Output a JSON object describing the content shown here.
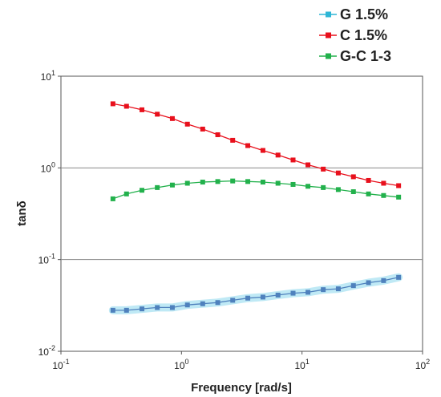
{
  "chart_data": {
    "type": "line",
    "title": "",
    "xlabel": "Frequency [rad/s]",
    "ylabel": "tanδ",
    "x_scale": "log",
    "y_scale": "log",
    "xlim": [
      0.1,
      100
    ],
    "ylim": [
      0.01,
      10
    ],
    "x_tick_labels": [
      {
        "base": "10",
        "exp": "-1"
      },
      {
        "base": "10",
        "exp": "0"
      },
      {
        "base": "10",
        "exp": "1"
      },
      {
        "base": "10",
        "exp": "2"
      }
    ],
    "y_tick_labels": [
      {
        "base": "10",
        "exp": "-2"
      },
      {
        "base": "10",
        "exp": "-1"
      },
      {
        "base": "10",
        "exp": "0"
      },
      {
        "base": "10",
        "exp": "1"
      }
    ],
    "grid": "horizontal major",
    "legend_position": "top-right, outside plot",
    "series": [
      {
        "name": "G 1.5%",
        "color": "#4f81bd",
        "band_color": "#bfe9f5",
        "x": [
          0.27,
          0.35,
          0.47,
          0.63,
          0.84,
          1.12,
          1.5,
          2.0,
          2.66,
          3.55,
          4.74,
          6.32,
          8.43,
          11.2,
          15.0,
          20.0,
          26.7,
          35.6,
          47.5,
          63.3
        ],
        "y": [
          0.028,
          0.028,
          0.029,
          0.03,
          0.03,
          0.032,
          0.033,
          0.034,
          0.036,
          0.038,
          0.039,
          0.041,
          0.043,
          0.044,
          0.047,
          0.048,
          0.052,
          0.056,
          0.059,
          0.064
        ]
      },
      {
        "name": "C 1.5%",
        "color": "#e8101c",
        "x": [
          0.27,
          0.35,
          0.47,
          0.63,
          0.84,
          1.12,
          1.5,
          2.0,
          2.66,
          3.55,
          4.74,
          6.32,
          8.43,
          11.2,
          15.0,
          20.0,
          26.7,
          35.6,
          47.5,
          63.3
        ],
        "y": [
          5.0,
          4.7,
          4.3,
          3.85,
          3.45,
          3.0,
          2.65,
          2.3,
          2.0,
          1.75,
          1.55,
          1.38,
          1.22,
          1.08,
          0.97,
          0.88,
          0.8,
          0.73,
          0.68,
          0.64
        ]
      },
      {
        "name": "G-C 1-3",
        "color": "#22b14c",
        "x": [
          0.27,
          0.35,
          0.47,
          0.63,
          0.84,
          1.12,
          1.5,
          2.0,
          2.66,
          3.55,
          4.74,
          6.32,
          8.43,
          11.2,
          15.0,
          20.0,
          26.7,
          35.6,
          47.5,
          63.3
        ],
        "y": [
          0.46,
          0.52,
          0.57,
          0.61,
          0.65,
          0.68,
          0.7,
          0.71,
          0.72,
          0.71,
          0.7,
          0.68,
          0.66,
          0.63,
          0.61,
          0.58,
          0.55,
          0.52,
          0.5,
          0.48
        ]
      }
    ]
  }
}
